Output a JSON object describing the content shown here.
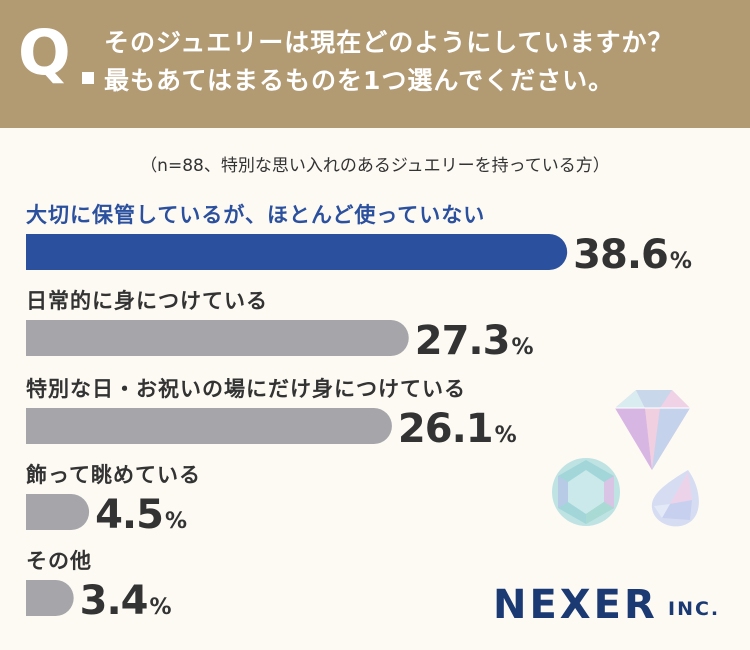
{
  "question": {
    "mark": "Q",
    "line1": "そのジュエリーは現在どのようにしていますか？",
    "line2": "最もあてはまるものを1つ選んでください。"
  },
  "note": "（n=88、特別な思い入れのあるジュエリーを持っている方）",
  "chart_data": {
    "type": "bar",
    "orientation": "horizontal",
    "unit": "%",
    "categories": [
      "大切に保管しているが、ほとんど使っていない",
      "日常的に身につけている",
      "特別な日・お祝いの場にだけ身につけている",
      "飾って眺めている",
      "その他"
    ],
    "values": [
      38.6,
      27.3,
      26.1,
      4.5,
      3.4
    ],
    "highlight_index": 0,
    "colors": {
      "highlight": "#2b509e",
      "bar": "#a5a5aa",
      "highlight_label": "#2b509e",
      "label": "#333333",
      "value": "#333333"
    }
  },
  "logo": {
    "name": "NEXER",
    "suffix": "INC."
  },
  "colors": {
    "header_bg": "#b29a73",
    "page_bg": "#fdfaf4"
  }
}
